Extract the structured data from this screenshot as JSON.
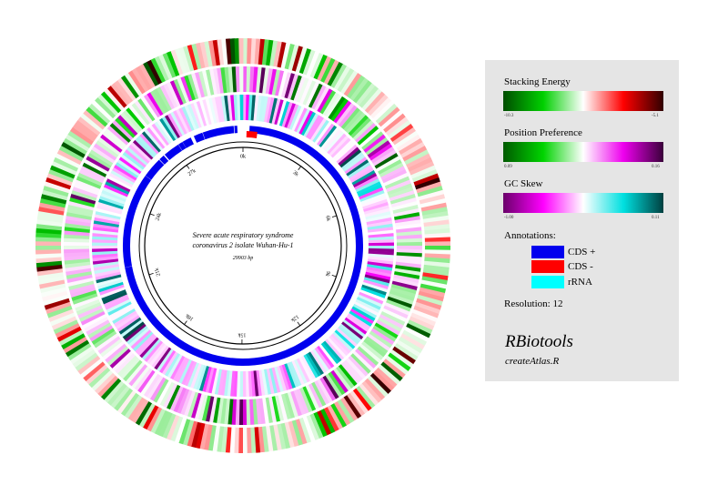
{
  "genome": {
    "name_line1": "Severe acute respiratory syndrome",
    "name_line2": "coronavirus 2 isolate Wuhan-Hu-1",
    "length_label": "29903 bp",
    "length": 29903
  },
  "ruler": {
    "labels": [
      "0k",
      "3k",
      "6k",
      "9k",
      "12k",
      "15k",
      "18k",
      "21k",
      "24k",
      "27k"
    ]
  },
  "legend": {
    "tracks": [
      {
        "title": "Stacking Energy",
        "min_label": "-10.3",
        "max_label": "-5.1",
        "colors": [
          "#004d00",
          "#00d000",
          "#ffffff",
          "#ff0000",
          "#300000"
        ]
      },
      {
        "title": "Position Preference",
        "min_label": "0.09",
        "max_label": "0.16",
        "colors": [
          "#005a00",
          "#00d400",
          "#ffffff",
          "#ee00ee",
          "#3a003a"
        ]
      },
      {
        "title": "GC Skew",
        "min_label": "-1.00",
        "max_label": "0.11",
        "colors": [
          "#6a006a",
          "#ff00ff",
          "#ffffff",
          "#00e0e0",
          "#004040"
        ]
      }
    ],
    "annotations_title": "Annotations:",
    "annotations": [
      {
        "label": "CDS +",
        "color": "#0000ee"
      },
      {
        "label": "CDS -",
        "color": "#ff0000"
      },
      {
        "label": "rRNA",
        "color": "#00ffff"
      }
    ],
    "resolution_label": "Resolution: 12"
  },
  "branding": {
    "title": "RBiotools",
    "subtitle": "createAtlas.R"
  },
  "features": {
    "cds_plus": [
      [
        266,
        13483
      ],
      [
        13468,
        21555
      ],
      [
        21563,
        25384
      ],
      [
        25393,
        26220
      ],
      [
        26245,
        26472
      ],
      [
        26523,
        27191
      ],
      [
        27202,
        27387
      ],
      [
        27394,
        27759
      ],
      [
        27894,
        28259
      ],
      [
        28274,
        29533
      ],
      [
        29558,
        29674
      ]
    ],
    "cds_minus": [
      [
        150,
        600
      ]
    ]
  }
}
